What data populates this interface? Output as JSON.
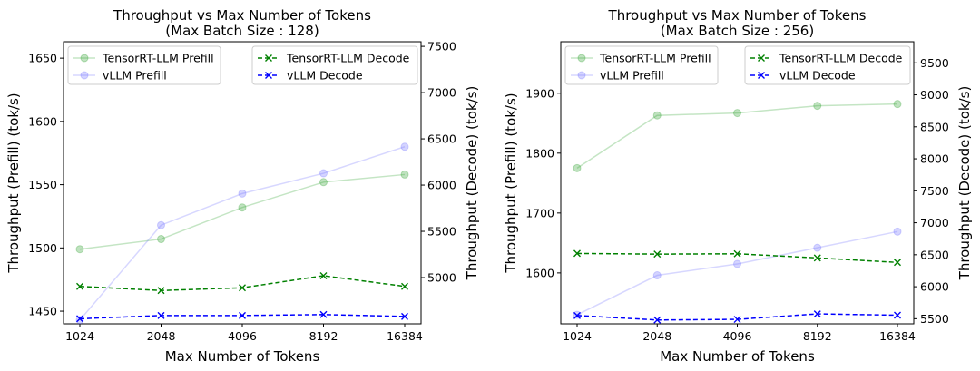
{
  "chart_data": [
    {
      "type": "line",
      "title": "Throughput vs Max Number of Tokens",
      "subtitle": "(Max Batch Size : 128)",
      "xlabel": "Max Number of Tokens",
      "ylabel": "Throughput (Prefill) (tok/s)",
      "ylabel_right": "Throughput (Decode) (tok/s)",
      "categories": [
        "1024",
        "2048",
        "4096",
        "8192",
        "16384"
      ],
      "ylim": [
        1440,
        1663
      ],
      "yticks": [
        1450,
        1500,
        1550,
        1600,
        1650
      ],
      "ylim_right": [
        4500,
        7550
      ],
      "yticks_right": [
        5000,
        5500,
        6000,
        6500,
        7000,
        7500
      ],
      "grid": false,
      "series": [
        {
          "name": "TensorRT-LLM Prefill",
          "axis": "left",
          "color": "#2ca02c",
          "marker": "o",
          "dash": "solid",
          "values": [
            1499,
            1507,
            1532,
            1552,
            1558
          ]
        },
        {
          "name": "vLLM Prefill",
          "axis": "left",
          "color": "#7070ff",
          "marker": "o",
          "dash": "solid",
          "values": [
            1443,
            1518,
            1543,
            1559,
            1580
          ]
        },
        {
          "name": "TensorRT-LLM Decode",
          "axis": "right",
          "color": "#008000",
          "marker": "x",
          "dash": "dashed",
          "values": [
            4905,
            4860,
            4890,
            5020,
            4905
          ]
        },
        {
          "name": "vLLM Decode",
          "axis": "right",
          "color": "#0000ff",
          "marker": "x",
          "dash": "dashed",
          "values": [
            4555,
            4590,
            4590,
            4600,
            4580
          ]
        }
      ],
      "legend_left": [
        "TensorRT-LLM Prefill",
        "vLLM Prefill"
      ],
      "legend_right": [
        "TensorRT-LLM Decode",
        "vLLM Decode"
      ]
    },
    {
      "type": "line",
      "title": "Throughput vs Max Number of Tokens",
      "subtitle": "(Max Batch Size : 256)",
      "xlabel": "Max Number of Tokens",
      "ylabel": "Throughput (Prefill) (tok/s)",
      "ylabel_right": "Throughput (Decode) (tok/s)",
      "categories": [
        "1024",
        "2048",
        "4096",
        "8192",
        "16384"
      ],
      "ylim": [
        1515,
        1986
      ],
      "yticks": [
        1600,
        1700,
        1800,
        1900
      ],
      "ylim_right": [
        5420,
        9830
      ],
      "yticks_right": [
        5500,
        6000,
        6500,
        7000,
        7500,
        8000,
        8500,
        9000,
        9500
      ],
      "grid": false,
      "series": [
        {
          "name": "TensorRT-LLM Prefill",
          "axis": "left",
          "color": "#2ca02c",
          "marker": "o",
          "dash": "solid",
          "values": [
            1775,
            1863,
            1867,
            1879,
            1882
          ]
        },
        {
          "name": "vLLM Prefill",
          "axis": "left",
          "color": "#7070ff",
          "marker": "o",
          "dash": "solid",
          "values": [
            1530,
            1596,
            1615,
            1642,
            1669
          ]
        },
        {
          "name": "TensorRT-LLM Decode",
          "axis": "right",
          "color": "#008000",
          "marker": "x",
          "dash": "dashed",
          "values": [
            6520,
            6510,
            6515,
            6450,
            6380
          ]
        },
        {
          "name": "vLLM Decode",
          "axis": "right",
          "color": "#0000ff",
          "marker": "x",
          "dash": "dashed",
          "values": [
            5550,
            5480,
            5490,
            5575,
            5555
          ]
        }
      ],
      "legend_left": [
        "TensorRT-LLM Prefill",
        "vLLM Prefill"
      ],
      "legend_right": [
        "TensorRT-LLM Decode",
        "vLLM Decode"
      ]
    }
  ]
}
